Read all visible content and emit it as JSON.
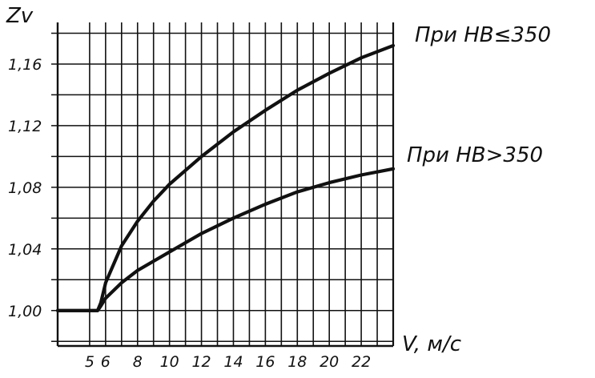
{
  "chart_data": {
    "type": "line",
    "ylabel": "Zv",
    "xlabel": "V, м/с",
    "x_ticks": [
      5,
      6,
      8,
      10,
      12,
      14,
      16,
      18,
      20,
      22
    ],
    "y_ticks": [
      "1,00",
      "1,04",
      "1,08",
      "1,12",
      "1,16"
    ],
    "y_tick_values": [
      1.0,
      1.04,
      1.08,
      1.12,
      1.16
    ],
    "xlim": [
      3,
      24
    ],
    "ylim": [
      0.977,
      1.187
    ],
    "grid": true,
    "series": [
      {
        "name": "При HB≤350",
        "points": [
          [
            3,
            1.0
          ],
          [
            5.5,
            1.0
          ],
          [
            5.7,
            1.005
          ],
          [
            6,
            1.018
          ],
          [
            7,
            1.042
          ],
          [
            8,
            1.058
          ],
          [
            9,
            1.071
          ],
          [
            10,
            1.082
          ],
          [
            12,
            1.1
          ],
          [
            14,
            1.116
          ],
          [
            16,
            1.13
          ],
          [
            18,
            1.143
          ],
          [
            20,
            1.154
          ],
          [
            22,
            1.164
          ],
          [
            24,
            1.172
          ]
        ]
      },
      {
        "name": "При HB>350",
        "points": [
          [
            3,
            1.0
          ],
          [
            5.5,
            1.0
          ],
          [
            5.7,
            1.003
          ],
          [
            6,
            1.008
          ],
          [
            7,
            1.018
          ],
          [
            8,
            1.026
          ],
          [
            10,
            1.038
          ],
          [
            12,
            1.05
          ],
          [
            14,
            1.06
          ],
          [
            16,
            1.069
          ],
          [
            18,
            1.077
          ],
          [
            20,
            1.083
          ],
          [
            22,
            1.088
          ],
          [
            24,
            1.092
          ]
        ]
      }
    ]
  }
}
